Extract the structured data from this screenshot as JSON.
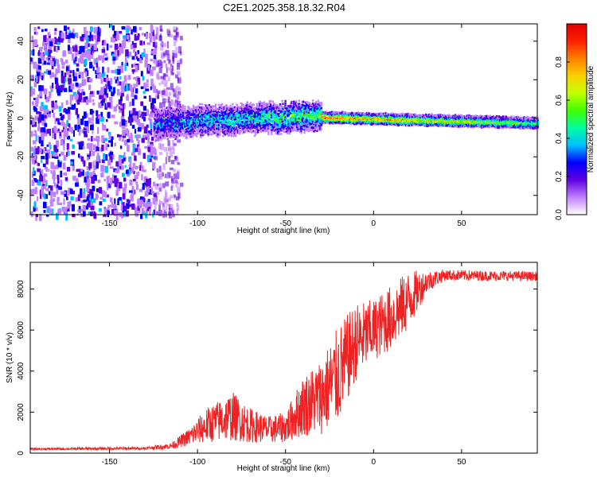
{
  "title": "C2E1.2025.358.18.32.R04",
  "chart_data": [
    {
      "type": "heatmap",
      "name": "spectrogram",
      "xlabel": "Height of straight line (km)",
      "ylabel": "Frequency (Hz)",
      "xlim": [
        -195,
        93
      ],
      "ylim": [
        -50,
        49
      ],
      "xticks": [
        -150,
        -100,
        -50,
        0,
        50
      ],
      "yticks": [
        -40,
        -20,
        0,
        20,
        40
      ],
      "colorbar": {
        "label": "Normalized spectral amplitude",
        "range": [
          0.0,
          1.0
        ],
        "ticks": [
          0.0,
          0.2,
          0.4,
          0.6,
          0.8
        ],
        "colors": [
          "#ffffff",
          "#c080ff",
          "#6000e0",
          "#0000ff",
          "#00c0ff",
          "#00ffa0",
          "#40ff00",
          "#c0ff00",
          "#ffd000",
          "#ff8000",
          "#ff2000",
          "#e00000"
        ]
      },
      "regions": [
        {
          "x_range": [
            -195,
            -125
          ],
          "description_level": 0.3,
          "freq_spread": 49
        },
        {
          "x_range": [
            -125,
            -110
          ],
          "description_level": 0.1,
          "freq_spread": 49
        },
        {
          "x_range": [
            -125,
            -30
          ],
          "description_level": 0.4,
          "freq_center_start": -2,
          "freq_center_end": 4,
          "freq_spread": 8
        },
        {
          "x_range": [
            -30,
            93
          ],
          "description_level": 0.6,
          "freq_center_start": 1,
          "freq_center_end": -2,
          "freq_spread": 3
        }
      ]
    },
    {
      "type": "line",
      "name": "snr",
      "xlabel": "Height of straight line (km)",
      "ylabel": "SNR (10 * v/v)",
      "xlim": [
        -195,
        93
      ],
      "ylim": [
        0,
        9300
      ],
      "xticks": [
        -150,
        -100,
        -50,
        0,
        50
      ],
      "yticks": [
        0,
        2000,
        4000,
        6000,
        8000
      ],
      "color": "#ee2222",
      "envelope": [
        {
          "x": -195,
          "low": 150,
          "high": 250
        },
        {
          "x": -130,
          "low": 170,
          "high": 300
        },
        {
          "x": -115,
          "low": 200,
          "high": 500
        },
        {
          "x": -105,
          "low": 350,
          "high": 1200
        },
        {
          "x": -95,
          "low": 500,
          "high": 2200
        },
        {
          "x": -80,
          "low": 600,
          "high": 3000
        },
        {
          "x": -70,
          "low": 500,
          "high": 2200
        },
        {
          "x": -60,
          "low": 500,
          "high": 1800
        },
        {
          "x": -50,
          "low": 500,
          "high": 2000
        },
        {
          "x": -40,
          "low": 800,
          "high": 3800
        },
        {
          "x": -30,
          "low": 900,
          "high": 4600
        },
        {
          "x": -20,
          "low": 1400,
          "high": 6200
        },
        {
          "x": -10,
          "low": 3500,
          "high": 7300
        },
        {
          "x": 0,
          "low": 4500,
          "high": 7500
        },
        {
          "x": 10,
          "low": 5000,
          "high": 8200
        },
        {
          "x": 20,
          "low": 6000,
          "high": 8900
        },
        {
          "x": 30,
          "low": 7800,
          "high": 8900
        },
        {
          "x": 40,
          "low": 8400,
          "high": 8950
        },
        {
          "x": 60,
          "low": 8400,
          "high": 8900
        },
        {
          "x": 93,
          "low": 8400,
          "high": 8850
        }
      ]
    }
  ]
}
